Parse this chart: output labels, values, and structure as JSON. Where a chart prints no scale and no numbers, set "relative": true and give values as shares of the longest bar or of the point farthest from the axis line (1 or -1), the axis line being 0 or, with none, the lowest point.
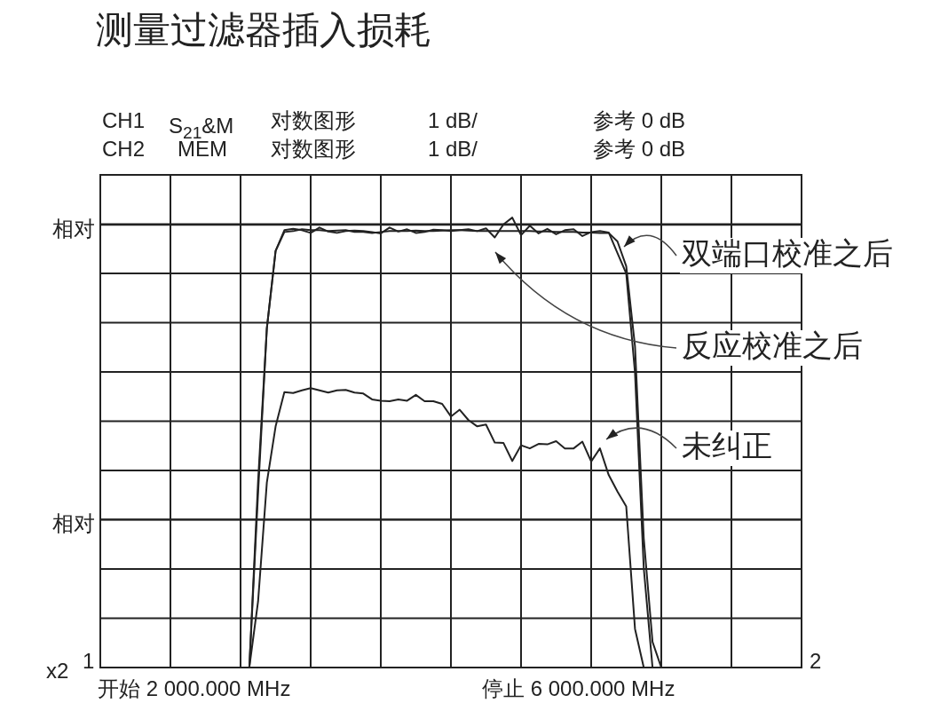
{
  "chart_data": {
    "type": "line",
    "title": "测量过滤器插入损耗",
    "relative": true,
    "categories": [
      null,
      null,
      null,
      null,
      null,
      null,
      null,
      null,
      null,
      null,
      null,
      null,
      null,
      null,
      null,
      null,
      null,
      null,
      null,
      null,
      null,
      null,
      null,
      null,
      null,
      null,
      null,
      null,
      null,
      null,
      null,
      null,
      null,
      null,
      null,
      null,
      null,
      null,
      null,
      null,
      null,
      null,
      null,
      null,
      null,
      null,
      null,
      null,
      null,
      null,
      null,
      null,
      null,
      null,
      null,
      null,
      null,
      null,
      null,
      null,
      null,
      null,
      null,
      null,
      null,
      null,
      null,
      null,
      null,
      null,
      null,
      null,
      null,
      null,
      null,
      null,
      null,
      null,
      null,
      null,
      null
    ],
    "grid": true,
    "line_style": "solid",
    "series": [
      {
        "color": "#222222",
        "values": [
          0,
          0,
          0,
          0,
          0,
          0,
          0,
          0,
          0,
          0,
          0,
          0,
          0,
          0,
          0,
          0,
          0,
          0,
          0.388,
          0.754,
          0.926,
          0.968,
          0.97,
          0.974,
          0.972,
          0.972,
          0.97,
          0.971,
          0.972,
          0.968,
          0.968,
          0.966,
          0.968,
          0.97,
          0.97,
          0.97,
          0.971,
          0.97,
          0.97,
          0.971,
          0.972,
          0.972,
          0.971,
          0.97,
          0.97,
          0.97,
          0.97,
          0.97,
          0.97,
          0.97,
          0.969,
          0.969,
          0.968,
          0.968,
          0.968,
          0.967,
          0.967,
          0.966,
          0.966,
          0.947,
          0.892,
          0.714,
          0.287,
          0.057,
          0,
          0,
          0,
          0,
          0,
          0,
          0,
          0,
          0,
          0,
          0,
          0,
          0,
          0,
          0,
          0,
          0
        ]
      },
      {
        "color": "#222222",
        "values": [
          0,
          0,
          0,
          0,
          0,
          0,
          0,
          0,
          0,
          0,
          0,
          0,
          0,
          0,
          0,
          0,
          0,
          0,
          0.414,
          0.754,
          0.926,
          0.972,
          0.975,
          0.972,
          0.966,
          0.978,
          0.969,
          0.966,
          0.97,
          0.971,
          0.97,
          0.968,
          0.965,
          0.978,
          0.969,
          0.974,
          0.966,
          0.968,
          0.973,
          0.972,
          0.97,
          0.972,
          0.974,
          0.97,
          0.976,
          0.956,
          0.985,
          1.0,
          0.961,
          0.982,
          0.965,
          0.975,
          0.963,
          0.972,
          0.974,
          0.959,
          0.968,
          0.97,
          0.967,
          0.921,
          0.876,
          0.655,
          0.221,
          0,
          0,
          0,
          0,
          0,
          0,
          0,
          0,
          0,
          0,
          0,
          0,
          0,
          0,
          0,
          0,
          0,
          0
        ]
      },
      {
        "color": "#222222",
        "values": [
          0,
          0,
          0,
          0,
          0,
          0,
          0,
          0,
          0,
          0,
          0,
          0,
          0,
          0,
          0,
          0,
          0,
          0,
          0.147,
          0.411,
          0.536,
          0.612,
          0.61,
          0.616,
          0.621,
          0.616,
          0.611,
          0.616,
          0.617,
          0.611,
          0.609,
          0.596,
          0.593,
          0.592,
          0.596,
          0.593,
          0.606,
          0.592,
          0.592,
          0.586,
          0.558,
          0.573,
          0.55,
          0.536,
          0.54,
          0.5,
          0.499,
          0.459,
          0.494,
          0.487,
          0.497,
          0.496,
          0.503,
          0.487,
          0.487,
          0.502,
          0.458,
          0.487,
          0.428,
          0.391,
          0.358,
          0.086,
          0,
          0,
          0,
          0,
          0,
          0,
          0,
          0,
          0,
          0,
          0,
          0,
          0,
          0,
          0,
          0,
          0,
          0,
          0
        ]
      }
    ],
    "ref_lines": [
      {
        "axis": "y",
        "value": 0.984,
        "label": "相对"
      },
      {
        "axis": "y",
        "value": 0.329,
        "label": "相对"
      }
    ],
    "annotations": [
      "CH1",
      "S$_{21}$&M",
      "对数图形",
      "1 dB/",
      "参考 0 dB",
      "CH2",
      "MEM",
      "对数图形",
      "1 dB/",
      "参考 0 dB",
      "开始 2 000.000 MHz",
      "停止 6 000.000 MHz",
      "x2",
      "1",
      "2",
      "双端口校准之后",
      "反应校准之后",
      "未纠正"
    ]
  }
}
